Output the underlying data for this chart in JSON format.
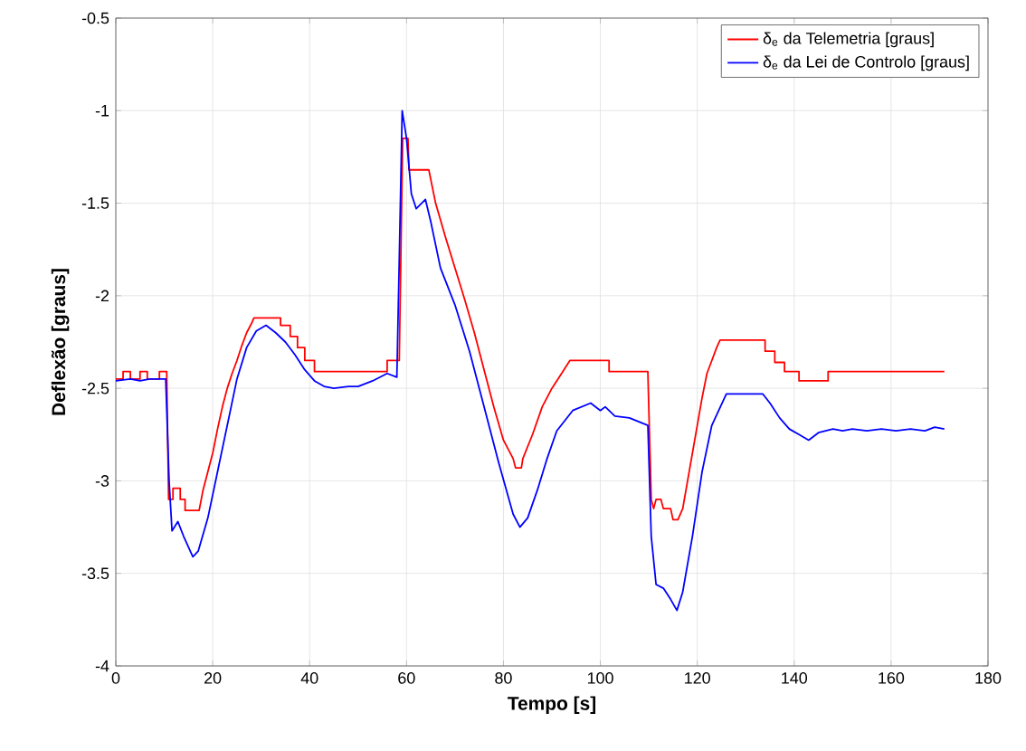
{
  "chart_data": {
    "type": "line",
    "xlabel": "Tempo [s]",
    "ylabel": "Deflexão [graus]",
    "xlim": [
      0,
      180
    ],
    "ylim": [
      -4,
      -0.5
    ],
    "xticks": [
      0,
      20,
      40,
      60,
      80,
      100,
      120,
      140,
      160,
      180
    ],
    "yticks": [
      -4,
      -3.5,
      -3,
      -2.5,
      -2,
      -1.5,
      -1,
      -0.5
    ],
    "grid": true,
    "legend": "top right",
    "marker": "none",
    "line_style": "solid",
    "series": [
      {
        "name": "δ$_{e}$ da Telemetria [graus]",
        "color": "#ff0000",
        "x": [
          0,
          1.5,
          1.5,
          3,
          3,
          5,
          5,
          6.5,
          6.5,
          9,
          9,
          10.5,
          10.9,
          11.8,
          11.8,
          13.3,
          13.3,
          14.3,
          14.3,
          17.2,
          18,
          19,
          20,
          21,
          22,
          23,
          24,
          25,
          26,
          27,
          28,
          28.5,
          34,
          34,
          36,
          36,
          37.5,
          37.5,
          39,
          39,
          41,
          41,
          56,
          56,
          58.5,
          59.2,
          60.3,
          60.5,
          64.6,
          66,
          68,
          70,
          72,
          74,
          76,
          78,
          80,
          82,
          82.5,
          83.7,
          84,
          86,
          88,
          90,
          92,
          93.7,
          101.8,
          101.8,
          109.8,
          110.5,
          111,
          111.5,
          112.5,
          113,
          114.5,
          115,
          116,
          117,
          118,
          119,
          120,
          121,
          122,
          123,
          124,
          124.7,
          134,
          134,
          136,
          136,
          138,
          138,
          141,
          141,
          147,
          147,
          171
        ],
        "values": [
          -2.45,
          -2.45,
          -2.41,
          -2.41,
          -2.45,
          -2.45,
          -2.41,
          -2.41,
          -2.45,
          -2.45,
          -2.41,
          -2.41,
          -3.1,
          -3.1,
          -3.04,
          -3.04,
          -3.1,
          -3.1,
          -3.16,
          -3.16,
          -3.05,
          -2.95,
          -2.85,
          -2.72,
          -2.6,
          -2.5,
          -2.42,
          -2.35,
          -2.27,
          -2.2,
          -2.15,
          -2.12,
          -2.12,
          -2.16,
          -2.16,
          -2.22,
          -2.22,
          -2.28,
          -2.28,
          -2.35,
          -2.35,
          -2.41,
          -2.41,
          -2.35,
          -2.35,
          -1.15,
          -1.15,
          -1.32,
          -1.32,
          -1.5,
          -1.68,
          -1.85,
          -2.02,
          -2.2,
          -2.4,
          -2.6,
          -2.78,
          -2.88,
          -2.93,
          -2.93,
          -2.88,
          -2.75,
          -2.6,
          -2.5,
          -2.42,
          -2.35,
          -2.35,
          -2.41,
          -2.41,
          -3.1,
          -3.15,
          -3.1,
          -3.1,
          -3.15,
          -3.15,
          -3.21,
          -3.21,
          -3.15,
          -3.0,
          -2.85,
          -2.7,
          -2.55,
          -2.42,
          -2.35,
          -2.28,
          -2.24,
          -2.24,
          -2.3,
          -2.3,
          -2.36,
          -2.36,
          -2.41,
          -2.41,
          -2.46,
          -2.46,
          -2.41,
          -2.41
        ]
      },
      {
        "name": "δ$_{e}$ da Lei de Controlo [graus]",
        "color": "#0000ff",
        "x": [
          0,
          3,
          5,
          7,
          10.3,
          11,
          11.6,
          12.8,
          14,
          15.9,
          17,
          19,
          21,
          23,
          25,
          27,
          29,
          31,
          33,
          35,
          37,
          39,
          41,
          43,
          45,
          48,
          50,
          53,
          56,
          58,
          58.5,
          59.1,
          60,
          61,
          62,
          63.9,
          65,
          67,
          70,
          73,
          76,
          79,
          82,
          83.4,
          85,
          87,
          89,
          91,
          94.3,
          98,
          100,
          101,
          103,
          106,
          109.8,
          110.5,
          111.5,
          113,
          114.5,
          115.8,
          117,
          119,
          121,
          123,
          126,
          133.5,
          135,
          137,
          139,
          141,
          143,
          145,
          148,
          150,
          152,
          155,
          158,
          161,
          164,
          167,
          169,
          171
        ],
        "values": [
          -2.46,
          -2.45,
          -2.46,
          -2.45,
          -2.45,
          -3.0,
          -3.27,
          -3.22,
          -3.3,
          -3.41,
          -3.38,
          -3.2,
          -2.95,
          -2.7,
          -2.45,
          -2.28,
          -2.19,
          -2.16,
          -2.2,
          -2.25,
          -2.32,
          -2.4,
          -2.46,
          -2.49,
          -2.5,
          -2.49,
          -2.49,
          -2.46,
          -2.42,
          -2.44,
          -1.8,
          -1.0,
          -1.15,
          -1.45,
          -1.53,
          -1.48,
          -1.6,
          -1.85,
          -2.05,
          -2.3,
          -2.6,
          -2.9,
          -3.18,
          -3.25,
          -3.2,
          -3.05,
          -2.88,
          -2.73,
          -2.62,
          -2.58,
          -2.62,
          -2.6,
          -2.65,
          -2.66,
          -2.7,
          -3.3,
          -3.56,
          -3.58,
          -3.64,
          -3.7,
          -3.6,
          -3.3,
          -2.95,
          -2.7,
          -2.53,
          -2.53,
          -2.58,
          -2.66,
          -2.72,
          -2.75,
          -2.78,
          -2.74,
          -2.72,
          -2.73,
          -2.72,
          -2.73,
          -2.72,
          -2.73,
          -2.72,
          -2.73,
          -2.71,
          -2.72
        ]
      }
    ]
  }
}
